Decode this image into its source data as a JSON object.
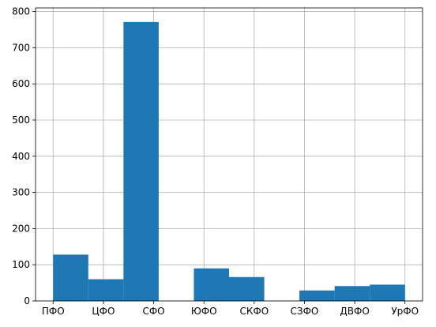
{
  "chart_data": {
    "type": "bar",
    "title": "",
    "xlabel": "",
    "ylabel": "",
    "categories": [
      "ПФО",
      "ЦФО",
      "СФО",
      "ЮФО",
      "СКФО",
      "СЗФО",
      "ДВФО",
      "УрФО"
    ],
    "bins": [
      {
        "x0": 0.0,
        "x1": 0.7,
        "value": 128
      },
      {
        "x0": 0.7,
        "x1": 1.4,
        "value": 60
      },
      {
        "x0": 1.4,
        "x1": 2.1,
        "value": 771
      },
      {
        "x0": 2.1,
        "x1": 2.8,
        "value": 0
      },
      {
        "x0": 2.8,
        "x1": 3.5,
        "value": 90
      },
      {
        "x0": 3.5,
        "x1": 4.2,
        "value": 66
      },
      {
        "x0": 4.2,
        "x1": 4.9,
        "value": 0
      },
      {
        "x0": 4.9,
        "x1": 5.6,
        "value": 29
      },
      {
        "x0": 5.6,
        "x1": 6.3,
        "value": 41
      },
      {
        "x0": 6.3,
        "x1": 7.0,
        "value": 45
      }
    ],
    "xlim": [
      -0.35,
      7.35
    ],
    "ylim": [
      0,
      810
    ],
    "yticks": [
      0,
      100,
      200,
      300,
      400,
      500,
      600,
      700,
      800
    ],
    "grid": true,
    "bar_color": "#1f77b4",
    "grid_color": "#b0b0b0"
  }
}
